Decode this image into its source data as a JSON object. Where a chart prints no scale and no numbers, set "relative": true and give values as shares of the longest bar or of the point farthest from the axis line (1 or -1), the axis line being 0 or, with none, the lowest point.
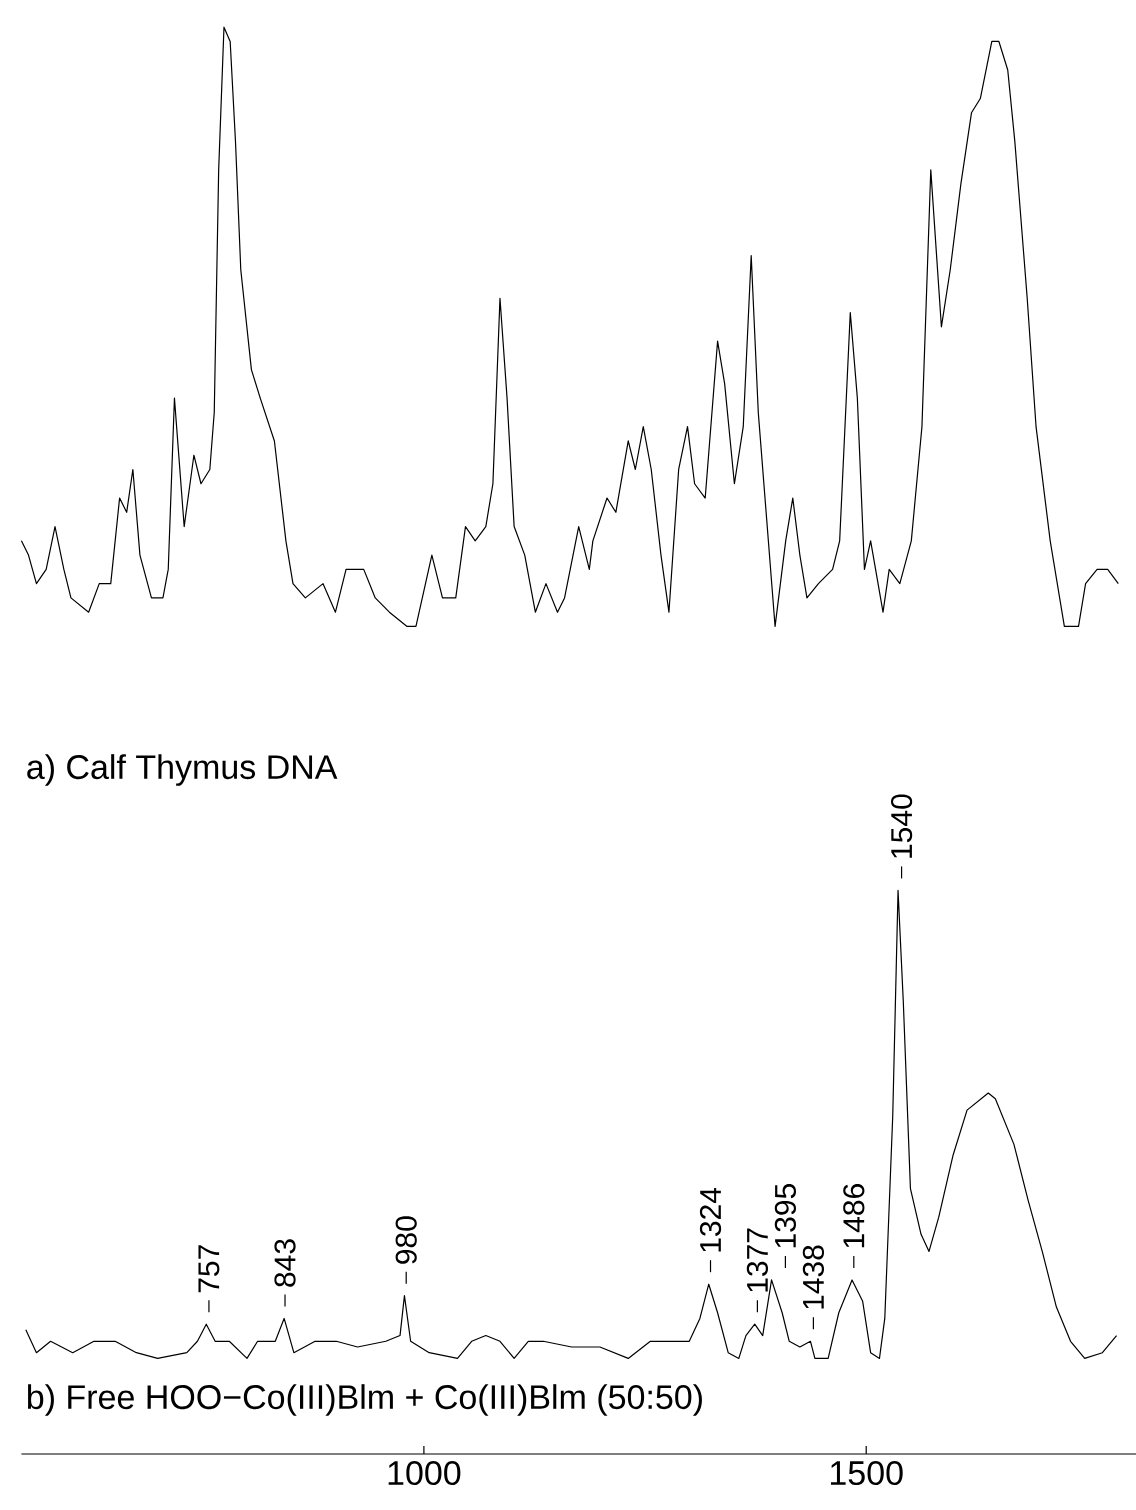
{
  "chart_data": {
    "type": "line",
    "relative": true,
    "xlim": [
      545,
      1805
    ],
    "xticks": [
      1000,
      1500
    ],
    "tick_labels": "x",
    "annotations": [
      "a) Calf Thymus DNA",
      "b) Free HOO−Co(III)Blm + Co(III)Blm (50:50)",
      {
        "text": "757",
        "x": 757,
        "y": 0.091
      },
      {
        "text": "843",
        "x": 843,
        "y": 0.095
      },
      {
        "text": "980",
        "x": 980,
        "y": 0.111
      },
      {
        "text": "1324",
        "x": 1324,
        "y": 0.119
      },
      {
        "text": "1377",
        "x": 1377,
        "y": 0.091
      },
      {
        "text": "1395",
        "x": 1395,
        "y": 0.122
      },
      {
        "text": "1438",
        "x": 1438,
        "y": 0.079
      },
      {
        "text": "1486",
        "x": 1486,
        "y": 0.122
      },
      {
        "text": "1540",
        "x": 1540,
        "y": 0.395
      }
    ],
    "series": [
      {
        "color": "#000000",
        "x": [
          545,
          553,
          562,
          573,
          583,
          593,
          601,
          621,
          633,
          646,
          656,
          664,
          671,
          679,
          692,
          705,
          711,
          718,
          729,
          740,
          748,
          758,
          763,
          768,
          774,
          781,
          787,
          793,
          805,
          815,
          831,
          844,
          852,
          866,
          886,
          900,
          912,
          932,
          945,
          961,
          981,
          991,
          1009,
          1021,
          1036,
          1047,
          1058,
          1070,
          1078,
          1086,
          1094,
          1102,
          1114,
          1126,
          1138,
          1151,
          1159,
          1175,
          1187,
          1191,
          1207,
          1217,
          1231,
          1239,
          1248,
          1257,
          1268,
          1277,
          1288,
          1298,
          1306,
          1318,
          1332,
          1340,
          1351,
          1361,
          1370,
          1378,
          1397,
          1409,
          1417,
          1425,
          1433,
          1446,
          1462,
          1470,
          1482,
          1490,
          1498,
          1505,
          1519,
          1526,
          1538,
          1551,
          1563,
          1573,
          1585,
          1595,
          1607,
          1619,
          1629,
          1642,
          1650,
          1660,
          1668,
          1682,
          1692,
          1708,
          1724,
          1740,
          1748,
          1761,
          1773,
          1785
        ],
        "values": [
          0.64,
          0.63,
          0.61,
          0.62,
          0.65,
          0.62,
          0.6,
          0.59,
          0.61,
          0.61,
          0.67,
          0.66,
          0.69,
          0.63,
          0.6,
          0.6,
          0.62,
          0.74,
          0.65,
          0.7,
          0.68,
          0.69,
          0.73,
          0.9,
          1.0,
          0.99,
          0.92,
          0.83,
          0.76,
          0.74,
          0.71,
          0.64,
          0.61,
          0.6,
          0.61,
          0.59,
          0.62,
          0.62,
          0.6,
          0.59,
          0.58,
          0.58,
          0.63,
          0.6,
          0.6,
          0.65,
          0.64,
          0.65,
          0.68,
          0.81,
          0.74,
          0.65,
          0.63,
          0.59,
          0.61,
          0.59,
          0.6,
          0.65,
          0.62,
          0.64,
          0.67,
          0.66,
          0.71,
          0.69,
          0.72,
          0.69,
          0.63,
          0.59,
          0.69,
          0.72,
          0.68,
          0.67,
          0.78,
          0.75,
          0.68,
          0.72,
          0.84,
          0.73,
          0.58,
          0.64,
          0.67,
          0.63,
          0.6,
          0.61,
          0.62,
          0.64,
          0.8,
          0.74,
          0.62,
          0.64,
          0.59,
          0.62,
          0.61,
          0.64,
          0.72,
          0.9,
          0.79,
          0.83,
          0.89,
          0.94,
          0.95,
          0.99,
          0.99,
          0.97,
          0.92,
          0.81,
          0.72,
          0.64,
          0.58,
          0.58,
          0.61,
          0.62,
          0.62,
          0.61
        ]
      },
      {
        "color": "#000000",
        "x": [
          550,
          562,
          578,
          603,
          627,
          651,
          675,
          699,
          732,
          744,
          754,
          764,
          780,
          800,
          812,
          832,
          842,
          853,
          877,
          901,
          925,
          957,
          973,
          978,
          985,
          1006,
          1038,
          1054,
          1070,
          1086,
          1102,
          1118,
          1135,
          1167,
          1199,
          1231,
          1256,
          1280,
          1300,
          1312,
          1322,
          1332,
          1344,
          1356,
          1364,
          1374,
          1383,
          1393,
          1405,
          1413,
          1425,
          1437,
          1442,
          1457,
          1469,
          1484,
          1496,
          1505,
          1515,
          1521,
          1530,
          1536,
          1542,
          1550,
          1562,
          1571,
          1582,
          1598,
          1614,
          1638,
          1646,
          1667,
          1683,
          1699,
          1715,
          1731,
          1747,
          1767,
          1783
        ],
        "values": [
          0.087,
          0.071,
          0.079,
          0.071,
          0.079,
          0.079,
          0.071,
          0.067,
          0.071,
          0.079,
          0.091,
          0.079,
          0.079,
          0.067,
          0.079,
          0.079,
          0.095,
          0.071,
          0.079,
          0.079,
          0.075,
          0.079,
          0.083,
          0.111,
          0.079,
          0.071,
          0.067,
          0.079,
          0.083,
          0.079,
          0.067,
          0.079,
          0.079,
          0.075,
          0.075,
          0.067,
          0.079,
          0.079,
          0.079,
          0.095,
          0.119,
          0.099,
          0.071,
          0.067,
          0.083,
          0.091,
          0.083,
          0.122,
          0.099,
          0.079,
          0.075,
          0.079,
          0.067,
          0.067,
          0.099,
          0.122,
          0.107,
          0.071,
          0.067,
          0.095,
          0.237,
          0.395,
          0.316,
          0.186,
          0.154,
          0.142,
          0.166,
          0.209,
          0.241,
          0.253,
          0.249,
          0.217,
          0.178,
          0.142,
          0.103,
          0.079,
          0.067,
          0.071,
          0.083
        ]
      }
    ]
  }
}
